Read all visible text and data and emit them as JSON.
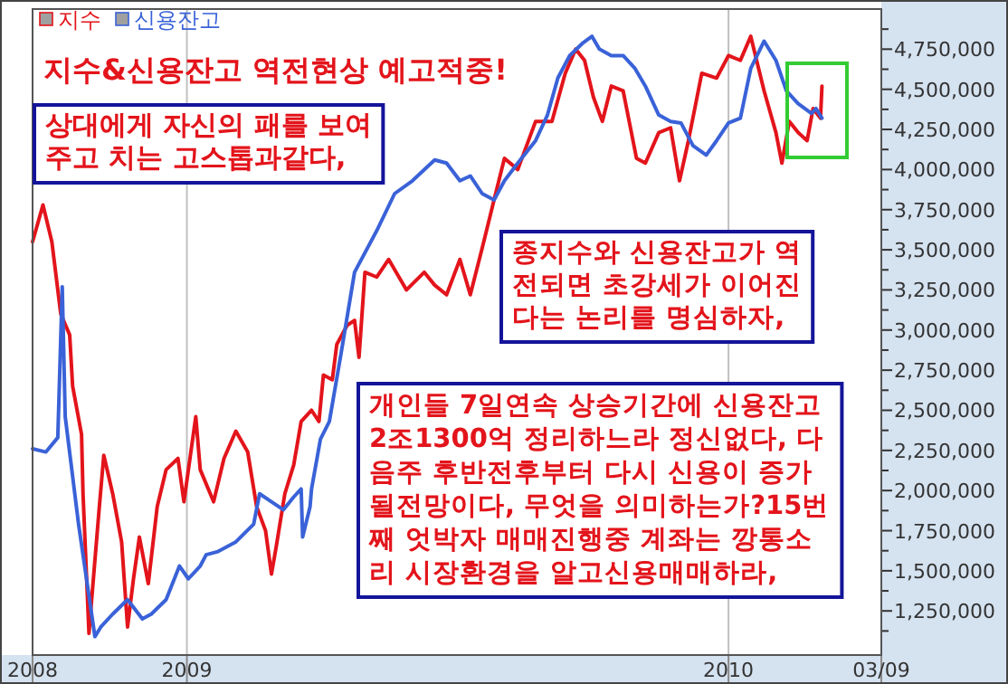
{
  "chart_data": {
    "type": "line",
    "title": "지수&신용잔고 역전현상 예고적중!",
    "annotations": [
      "상대에게 자신의 패를 보여\n주고 치는 고스톱과같다,",
      "종지수와 신용잔고가 역\n전되면 초강세가 이어진\n다는 논리를 명심하자,",
      "개인들 7일연속 상승기간에 신용잔고\n2조1300억 정리하느라 정신없다, 다\n음주 후반전후부터 다시 신용이 증가\n될전망이다, 무엇을 의미하는가?15번\n째 엇박자 매매진행중 계좌는 깡통소\n리 시장환경을 알고신용매매하라,"
    ],
    "series": [
      {
        "name": "지수",
        "color": "#e3141b",
        "x": [
          "2008-09-19",
          "2008-09-26",
          "2008-10-02",
          "2008-10-08",
          "2008-10-14",
          "2008-10-16",
          "2008-10-22",
          "2008-10-23",
          "2008-10-27",
          "2008-10-29",
          "2008-11-03",
          "2008-11-06",
          "2008-11-12",
          "2008-11-18",
          "2008-11-22",
          "2008-11-26",
          "2008-11-30",
          "2008-12-06",
          "2008-12-12",
          "2008-12-18",
          "2008-12-26",
          "2008-12-30",
          "2009-01-07",
          "2009-01-10",
          "2009-01-19",
          "2009-01-26",
          "2009-02-03",
          "2009-02-11",
          "2009-02-17",
          "2009-02-23",
          "2009-02-27",
          "2009-03-02",
          "2009-03-08",
          "2009-03-14",
          "2009-03-19",
          "2009-03-26",
          "2009-03-31",
          "2009-04-03",
          "2009-04-09",
          "2009-04-12",
          "2009-04-19",
          "2009-04-24",
          "2009-04-27",
          "2009-05-01",
          "2009-05-09",
          "2009-05-17",
          "2009-05-29",
          "2009-06-10",
          "2009-06-17",
          "2009-06-25",
          "2009-07-04",
          "2009-07-11",
          "2009-07-19",
          "2009-07-27",
          "2009-08-03",
          "2009-08-12",
          "2009-08-24",
          "2009-09-04",
          "2009-09-13",
          "2009-09-20",
          "2009-09-26",
          "2009-10-02",
          "2009-10-08",
          "2009-10-14",
          "2009-10-22",
          "2009-10-31",
          "2009-11-06",
          "2009-11-15",
          "2009-11-23",
          "2009-11-29",
          "2009-12-05",
          "2009-12-14",
          "2009-12-24",
          "2010-01-01",
          "2010-01-09",
          "2010-01-16",
          "2010-01-25",
          "2010-02-02",
          "2010-02-06",
          "2010-02-11",
          "2010-02-17",
          "2010-02-23",
          "2010-02-27",
          "2010-03-04",
          "2010-03-05"
        ],
        "values": [
          3550000,
          3780000,
          3550000,
          3100000,
          2970000,
          2650000,
          2350000,
          1980000,
          1110000,
          1340000,
          1900000,
          2220000,
          1980000,
          1680000,
          1150000,
          1450000,
          1710000,
          1420000,
          1900000,
          2130000,
          2200000,
          1930000,
          2460000,
          2130000,
          1930000,
          2200000,
          2370000,
          2240000,
          1900000,
          1750000,
          1480000,
          1640000,
          1980000,
          2160000,
          2430000,
          2500000,
          2430000,
          2720000,
          2690000,
          2910000,
          3030000,
          3060000,
          2830000,
          3360000,
          3330000,
          3440000,
          3250000,
          3360000,
          3280000,
          3220000,
          3440000,
          3220000,
          3510000,
          3810000,
          4070000,
          4000000,
          4300000,
          4300000,
          4600000,
          4750000,
          4680000,
          4450000,
          4300000,
          4520000,
          4490000,
          4070000,
          4040000,
          4230000,
          4260000,
          3930000,
          4180000,
          4600000,
          4570000,
          4710000,
          4680000,
          4830000,
          4490000,
          4230000,
          4040000,
          4300000,
          4230000,
          4180000,
          4380000,
          4320000,
          4520000
        ]
      },
      {
        "name": "신용잔고",
        "color": "#3a62d8",
        "x": [
          "2008-09-19",
          "2008-09-28",
          "2008-10-06",
          "2008-10-09",
          "2008-10-11",
          "2008-10-20",
          "2008-10-31",
          "2008-11-04",
          "2008-11-12",
          "2008-11-22",
          "2008-12-02",
          "2008-12-08",
          "2008-12-18",
          "2008-12-27",
          "2009-01-02",
          "2009-01-10",
          "2009-01-14",
          "2009-01-22",
          "2009-02-03",
          "2009-02-15",
          "2009-02-19",
          "2009-02-27",
          "2009-03-07",
          "2009-03-14",
          "2009-03-19",
          "2009-03-20",
          "2009-03-25",
          "2009-03-26",
          "2009-04-01",
          "2009-04-07",
          "2009-04-15",
          "2009-04-24",
          "2009-05-09",
          "2009-05-21",
          "2009-06-02",
          "2009-06-17",
          "2009-06-25",
          "2009-07-04",
          "2009-07-11",
          "2009-07-19",
          "2009-07-27",
          "2009-08-03",
          "2009-08-12",
          "2009-08-24",
          "2009-09-01",
          "2009-09-08",
          "2009-09-16",
          "2009-09-25",
          "2009-10-01",
          "2009-10-06",
          "2009-10-14",
          "2009-10-22",
          "2009-10-30",
          "2009-11-06",
          "2009-11-15",
          "2009-11-23",
          "2009-11-30",
          "2009-12-08",
          "2009-12-17",
          "2009-12-24",
          "2010-01-01",
          "2010-01-09",
          "2010-01-16",
          "2010-01-25",
          "2010-02-02",
          "2010-02-09",
          "2010-02-17",
          "2010-02-26",
          "2010-03-01",
          "2010-03-05"
        ],
        "values": [
          2260000,
          2240000,
          2330000,
          3270000,
          2460000,
          1790000,
          1090000,
          1150000,
          1230000,
          1320000,
          1200000,
          1230000,
          1320000,
          1530000,
          1450000,
          1530000,
          1600000,
          1620000,
          1680000,
          1790000,
          1980000,
          1930000,
          1880000,
          1960000,
          2010000,
          1710000,
          1900000,
          2010000,
          2320000,
          2430000,
          2860000,
          3360000,
          3620000,
          3850000,
          3930000,
          4060000,
          4040000,
          3930000,
          3960000,
          3850000,
          3810000,
          3930000,
          4040000,
          4180000,
          4340000,
          4570000,
          4710000,
          4790000,
          4830000,
          4750000,
          4710000,
          4710000,
          4630000,
          4520000,
          4340000,
          4300000,
          4290000,
          4150000,
          4090000,
          4180000,
          4290000,
          4320000,
          4630000,
          4800000,
          4680000,
          4490000,
          4410000,
          4350000,
          4380000,
          4320000
        ]
      }
    ],
    "xlim": [
      "2008-09-19",
      "2010-04-14"
    ],
    "xticks": [
      {
        "value": "2008-09-19",
        "label": "2008"
      },
      {
        "value": "2009-01-01",
        "label": "2009"
      },
      {
        "value": "2010-01-01",
        "label": "2010"
      },
      {
        "value": "2010-04-14",
        "label": "03/09"
      }
    ],
    "ylim": [
      975000,
      5000000
    ],
    "yticks": [
      {
        "value": 1125000,
        "label": null
      },
      {
        "value": 1250000,
        "label": "1,250,000"
      },
      {
        "value": 1375000,
        "label": null
      },
      {
        "value": 1500000,
        "label": "1,500,000"
      },
      {
        "value": 1625000,
        "label": null
      },
      {
        "value": 1750000,
        "label": "1,750,000"
      },
      {
        "value": 1875000,
        "label": null
      },
      {
        "value": 2000000,
        "label": "2,000,000"
      },
      {
        "value": 2125000,
        "label": null
      },
      {
        "value": 2250000,
        "label": "2,250,000"
      },
      {
        "value": 2375000,
        "label": null
      },
      {
        "value": 2500000,
        "label": "2,500,000"
      },
      {
        "value": 2625000,
        "label": null
      },
      {
        "value": 2750000,
        "label": "2,750,000"
      },
      {
        "value": 2875000,
        "label": null
      },
      {
        "value": 3000000,
        "label": "3,000,000"
      },
      {
        "value": 3125000,
        "label": null
      },
      {
        "value": 3250000,
        "label": "3,250,000"
      },
      {
        "value": 3375000,
        "label": null
      },
      {
        "value": 3500000,
        "label": "3,500,000"
      },
      {
        "value": 3625000,
        "label": null
      },
      {
        "value": 3750000,
        "label": "3,750,000"
      },
      {
        "value": 3875000,
        "label": null
      },
      {
        "value": 4000000,
        "label": "4,000,000"
      },
      {
        "value": 4125000,
        "label": null
      },
      {
        "value": 4250000,
        "label": "4,250,000"
      },
      {
        "value": 4375000,
        "label": null
      },
      {
        "value": 4500000,
        "label": "4,500,000"
      },
      {
        "value": 4625000,
        "label": null
      },
      {
        "value": 4750000,
        "label": "4,750,000"
      },
      {
        "value": 4875000,
        "label": null
      }
    ],
    "grid": "x",
    "legend": "top left"
  }
}
